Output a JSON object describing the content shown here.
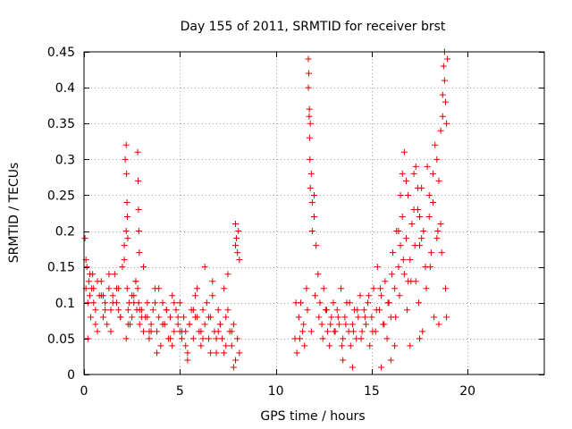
{
  "chart_data": {
    "type": "scatter",
    "title": "Day 155 of 2011, SRMTID for receiver brst",
    "xlabel": "GPS time / hours",
    "ylabel": "SRMTID / TECUs",
    "xlim": [
      0,
      24
    ],
    "ylim": [
      0,
      0.45
    ],
    "xticks": [
      0,
      5,
      10,
      15,
      20
    ],
    "yticks": [
      0,
      0.05,
      0.1,
      0.15,
      0.2,
      0.25,
      0.3,
      0.35,
      0.4,
      0.45
    ],
    "xtick_labels": [
      "0",
      "5",
      "10",
      "15",
      "20"
    ],
    "ytick_labels": [
      "0",
      "0.05",
      "0.1",
      "0.15",
      "0.2",
      "0.25",
      "0.3",
      "0.35",
      "0.4",
      "0.45"
    ],
    "grid": true,
    "marker": "+",
    "color": "#dd0000",
    "series": [
      {
        "name": "SRMTID",
        "x": [
          0.05,
          0.1,
          0.15,
          0.2,
          0.25,
          0.3,
          0.35,
          0.4,
          0.45,
          0.5,
          0.6,
          0.7,
          0.8,
          0.9,
          1.0,
          1.1,
          1.2,
          1.3,
          1.4,
          1.5,
          1.6,
          1.7,
          1.8,
          1.9,
          2.0,
          2.1,
          2.15,
          2.2,
          2.25,
          2.3,
          2.35,
          2.4,
          2.5,
          2.6,
          2.7,
          2.75,
          2.8,
          2.85,
          2.9,
          3.0,
          3.1,
          3.2,
          3.3,
          3.4,
          3.5,
          3.6,
          3.7,
          3.8,
          3.9,
          4.0,
          4.1,
          4.2,
          4.3,
          4.4,
          4.5,
          4.6,
          4.7,
          4.8,
          4.9,
          5.0,
          5.1,
          5.2,
          5.3,
          5.4,
          5.5,
          5.6,
          5.7,
          5.8,
          5.9,
          6.0,
          6.1,
          6.2,
          6.3,
          6.4,
          6.5,
          6.6,
          6.7,
          6.8,
          6.9,
          7.0,
          7.1,
          7.2,
          7.3,
          7.4,
          7.5,
          7.6,
          7.7,
          7.8,
          7.9,
          8.0,
          8.1,
          0.1,
          0.3,
          0.5,
          0.7,
          0.9,
          1.1,
          1.3,
          1.5,
          1.7,
          1.9,
          2.1,
          2.3,
          2.5,
          2.7,
          2.9,
          3.1,
          3.3,
          3.5,
          3.7,
          3.9,
          4.1,
          4.3,
          4.5,
          4.7,
          4.9,
          5.1,
          5.3,
          5.5,
          5.7,
          5.9,
          6.1,
          6.3,
          6.5,
          6.7,
          6.9,
          7.1,
          7.3,
          7.5,
          7.7,
          7.9,
          0.2,
          0.6,
          1.0,
          1.4,
          1.8,
          2.2,
          2.6,
          3.0,
          3.4,
          3.8,
          4.2,
          4.6,
          5.0,
          5.4,
          5.8,
          6.2,
          6.6,
          7.0,
          7.4,
          7.8,
          2.2,
          2.22,
          2.24,
          2.26,
          2.28,
          2.8,
          2.82,
          2.84,
          2.86,
          2.88,
          7.9,
          7.95,
          8.0,
          8.05,
          8.1,
          11.0,
          11.1,
          11.2,
          11.3,
          11.4,
          11.5,
          11.6,
          11.7,
          11.75,
          11.8,
          11.85,
          11.9,
          12.0,
          12.1,
          12.2,
          12.3,
          12.4,
          12.5,
          12.6,
          12.7,
          12.8,
          12.9,
          13.0,
          13.1,
          13.2,
          13.3,
          13.4,
          13.5,
          13.6,
          13.7,
          13.8,
          13.9,
          14.0,
          14.1,
          14.2,
          14.3,
          14.4,
          14.5,
          14.6,
          14.7,
          14.8,
          14.9,
          15.0,
          15.1,
          15.2,
          15.3,
          15.4,
          15.5,
          15.6,
          15.7,
          15.8,
          15.9,
          16.0,
          16.1,
          16.2,
          16.3,
          16.4,
          16.5,
          16.6,
          16.7,
          16.8,
          16.9,
          17.0,
          17.1,
          17.2,
          17.3,
          17.4,
          17.5,
          17.6,
          17.7,
          17.8,
          17.9,
          18.0,
          18.1,
          18.2,
          18.3,
          18.4,
          18.5,
          18.6,
          18.7,
          18.8,
          18.9,
          11.05,
          11.25,
          11.45,
          11.65,
          11.85,
          12.05,
          12.25,
          12.45,
          12.65,
          12.85,
          13.05,
          13.25,
          13.45,
          13.65,
          13.85,
          14.05,
          14.25,
          14.45,
          14.65,
          14.85,
          15.05,
          15.25,
          15.45,
          15.65,
          15.85,
          16.05,
          16.25,
          16.45,
          16.65,
          16.85,
          17.05,
          17.25,
          17.45,
          17.65,
          17.85,
          18.05,
          18.25,
          18.45,
          18.65,
          18.85,
          11.7,
          11.72,
          11.74,
          11.76,
          11.78,
          11.8,
          11.9,
          12.0,
          16.4,
          16.5,
          16.6,
          16.7,
          16.8,
          17.2,
          17.3,
          17.4,
          17.5,
          17.6,
          18.0,
          18.2,
          18.4,
          18.6,
          18.7,
          18.75,
          18.8,
          18.85,
          18.9,
          17.0,
          17.5,
          16.0,
          15.5,
          14.0,
          13.5,
          18.95,
          18.5,
          16.9,
          16.2
        ],
        "y": [
          0.19,
          0.12,
          0.15,
          0.1,
          0.13,
          0.11,
          0.08,
          0.12,
          0.14,
          0.1,
          0.09,
          0.06,
          0.11,
          0.13,
          0.08,
          0.1,
          0.07,
          0.12,
          0.09,
          0.11,
          0.14,
          0.1,
          0.12,
          0.08,
          0.15,
          0.18,
          0.3,
          0.2,
          0.12,
          0.09,
          0.1,
          0.07,
          0.08,
          0.11,
          0.13,
          0.09,
          0.12,
          0.1,
          0.07,
          0.09,
          0.06,
          0.08,
          0.1,
          0.05,
          0.07,
          0.09,
          0.12,
          0.06,
          0.08,
          0.04,
          0.1,
          0.07,
          0.09,
          0.05,
          0.08,
          0.11,
          0.06,
          0.09,
          0.07,
          0.1,
          0.05,
          0.08,
          0.06,
          0.03,
          0.07,
          0.09,
          0.05,
          0.11,
          0.08,
          0.06,
          0.04,
          0.09,
          0.07,
          0.1,
          0.05,
          0.08,
          0.13,
          0.06,
          0.03,
          0.09,
          0.07,
          0.05,
          0.12,
          0.08,
          0.14,
          0.06,
          0.04,
          0.07,
          0.02,
          0.05,
          0.03,
          0.16,
          0.14,
          0.12,
          0.13,
          0.11,
          0.09,
          0.14,
          0.1,
          0.12,
          0.08,
          0.16,
          0.07,
          0.11,
          0.13,
          0.09,
          0.15,
          0.08,
          0.06,
          0.1,
          0.12,
          0.07,
          0.09,
          0.05,
          0.1,
          0.08,
          0.06,
          0.04,
          0.07,
          0.09,
          0.12,
          0.06,
          0.15,
          0.08,
          0.11,
          0.05,
          0.07,
          0.03,
          0.09,
          0.06,
          0.18,
          0.05,
          0.07,
          0.11,
          0.06,
          0.09,
          0.05,
          0.1,
          0.08,
          0.06,
          0.03,
          0.07,
          0.04,
          0.06,
          0.02,
          0.08,
          0.05,
          0.03,
          0.06,
          0.04,
          0.01,
          0.32,
          0.28,
          0.24,
          0.22,
          0.19,
          0.31,
          0.27,
          0.23,
          0.2,
          0.17,
          0.21,
          0.19,
          0.17,
          0.2,
          0.16,
          0.05,
          0.03,
          0.08,
          0.1,
          0.06,
          0.04,
          0.12,
          0.44,
          0.37,
          0.35,
          0.28,
          0.2,
          0.25,
          0.18,
          0.14,
          0.1,
          0.07,
          0.12,
          0.09,
          0.06,
          0.04,
          0.08,
          0.1,
          0.06,
          0.09,
          0.07,
          0.12,
          0.05,
          0.08,
          0.1,
          0.06,
          0.04,
          0.07,
          0.09,
          0.05,
          0.08,
          0.11,
          0.06,
          0.09,
          0.07,
          0.1,
          0.04,
          0.08,
          0.12,
          0.06,
          0.15,
          0.09,
          0.11,
          0.07,
          0.13,
          0.05,
          0.1,
          0.08,
          0.17,
          0.12,
          0.2,
          0.15,
          0.18,
          0.22,
          0.14,
          0.19,
          0.25,
          0.16,
          0.21,
          0.28,
          0.13,
          0.23,
          0.18,
          0.26,
          0.2,
          0.15,
          0.29,
          0.22,
          0.17,
          0.24,
          0.32,
          0.19,
          0.27,
          0.21,
          0.36,
          0.41,
          0.08,
          0.1,
          0.05,
          0.07,
          0.09,
          0.06,
          0.11,
          0.08,
          0.05,
          0.09,
          0.07,
          0.06,
          0.08,
          0.04,
          0.07,
          0.1,
          0.06,
          0.09,
          0.05,
          0.08,
          0.11,
          0.06,
          0.09,
          0.12,
          0.07,
          0.1,
          0.14,
          0.08,
          0.11,
          0.16,
          0.09,
          0.13,
          0.18,
          0.1,
          0.06,
          0.12,
          0.15,
          0.08,
          0.2,
          0.17,
          0.12,
          0.4,
          0.42,
          0.36,
          0.33,
          0.3,
          0.26,
          0.24,
          0.22,
          0.2,
          0.25,
          0.28,
          0.31,
          0.27,
          0.23,
          0.29,
          0.26,
          0.22,
          0.19,
          0.25,
          0.28,
          0.3,
          0.34,
          0.39,
          0.43,
          0.45,
          0.38,
          0.35,
          0.04,
          0.05,
          0.02,
          0.01,
          0.01,
          0.02,
          0.44,
          0.07,
          0.13,
          0.04
        ]
      }
    ]
  }
}
